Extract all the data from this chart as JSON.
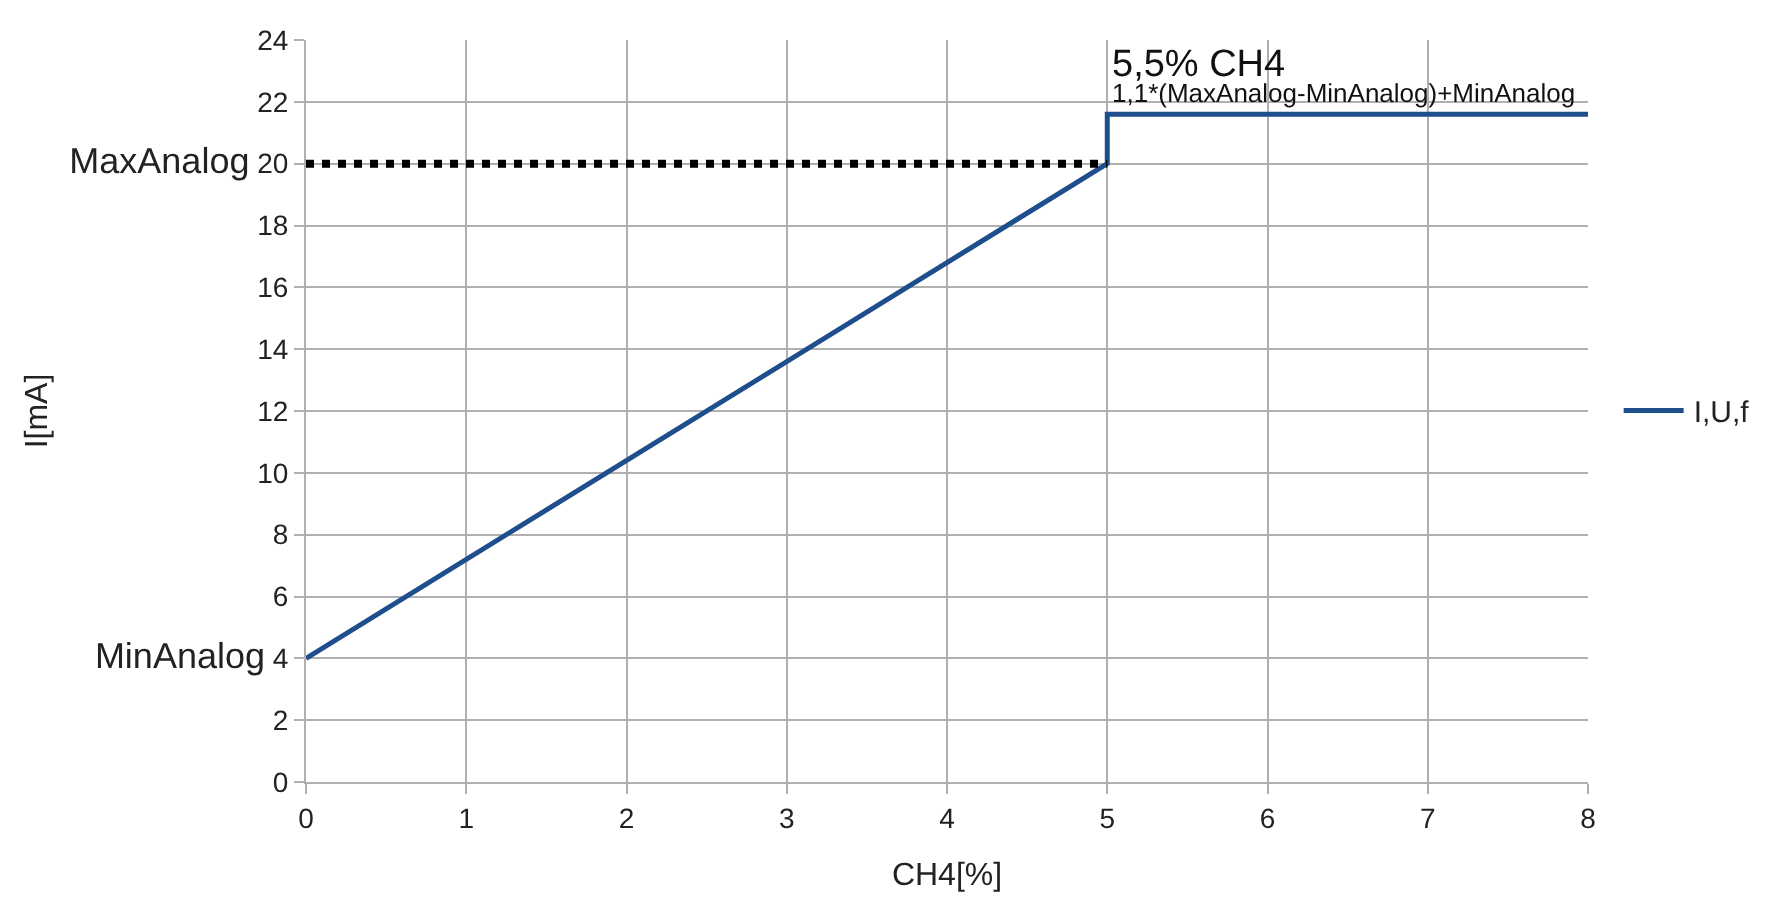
{
  "chart_data": {
    "type": "line",
    "xlabel": "CH4[%]",
    "ylabel": "I[mA]",
    "series": [
      {
        "name": "I,U,f",
        "color": "#1f4e8c",
        "x": [
          0,
          5,
          5,
          8
        ],
        "values": [
          4,
          20,
          21.6,
          21.6
        ],
        "line_style": "solid"
      },
      {
        "color": "#000000",
        "x": [
          0,
          5
        ],
        "values": [
          20,
          20
        ],
        "line_style": "dotted"
      }
    ],
    "xlim": [
      0,
      8
    ],
    "xticks": [
      0,
      1,
      2,
      3,
      4,
      5,
      6,
      7,
      8
    ],
    "ylim": [
      0,
      24
    ],
    "yticks": [
      0,
      2,
      {
        "value": 4,
        "label": "MinAnalog 4"
      },
      6,
      8,
      10,
      12,
      14,
      16,
      18,
      {
        "value": 20,
        "label": "MaxAnalog 20"
      },
      22,
      24
    ],
    "grid": true,
    "legend": "right",
    "marker": "none",
    "annotations": [
      "5,5% CH4",
      "1,1*(MaxAnalog-MinAnalog)+MinAnalog"
    ]
  }
}
